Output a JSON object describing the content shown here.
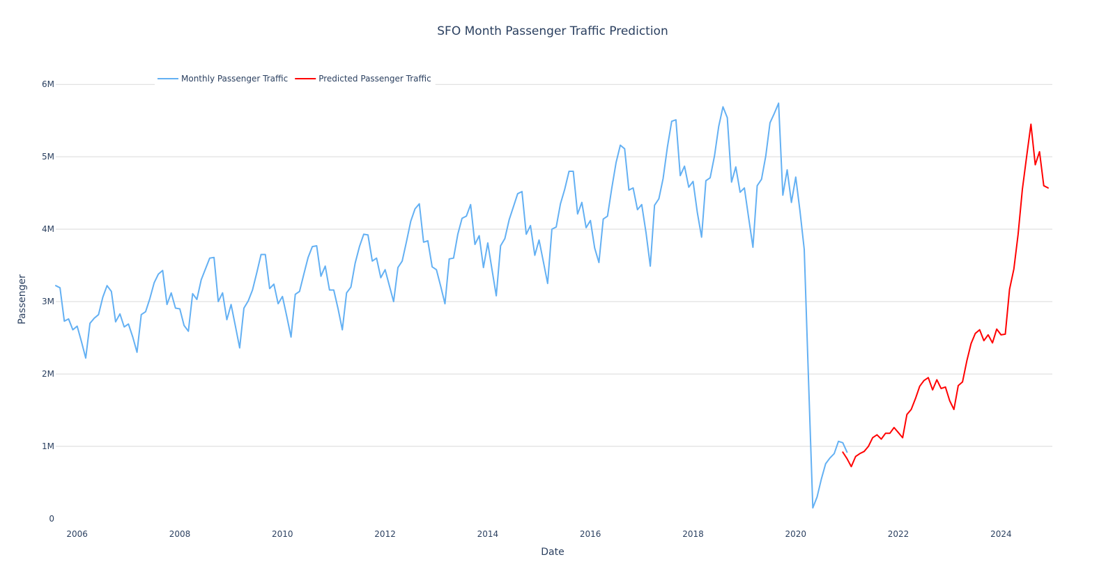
{
  "chart_data": {
    "type": "line",
    "title": "SFO Month Passenger Traffic Prediction",
    "xlabel": "Date",
    "ylabel": "Passenger",
    "xlim": [
      "2005-08",
      "2025-01"
    ],
    "ylim": [
      0,
      6300000
    ],
    "grid": "horizontal",
    "legend_placement": "top-left",
    "x_ticks": [
      "2006",
      "2008",
      "2010",
      "2012",
      "2014",
      "2016",
      "2018",
      "2020",
      "2022",
      "2024"
    ],
    "y_ticks": [
      {
        "value": 0,
        "label": "0"
      },
      {
        "value": 1000000,
        "label": "1M"
      },
      {
        "value": 2000000,
        "label": "2M"
      },
      {
        "value": 3000000,
        "label": "3M"
      },
      {
        "value": 4000000,
        "label": "4M"
      },
      {
        "value": 5000000,
        "label": "5M"
      },
      {
        "value": 6000000,
        "label": "6M"
      }
    ],
    "series": [
      {
        "name": "Monthly Passenger Traffic",
        "color": "#63b0f3",
        "start": "2005-08",
        "values": [
          3220000,
          3190000,
          2730000,
          2760000,
          2610000,
          2660000,
          2450000,
          2220000,
          2700000,
          2770000,
          2820000,
          3060000,
          3220000,
          3140000,
          2720000,
          2830000,
          2650000,
          2690000,
          2510000,
          2300000,
          2820000,
          2860000,
          3040000,
          3260000,
          3380000,
          3430000,
          2960000,
          3120000,
          2910000,
          2900000,
          2670000,
          2590000,
          3110000,
          3030000,
          3300000,
          3450000,
          3600000,
          3610000,
          3000000,
          3120000,
          2750000,
          2960000,
          2660000,
          2360000,
          2910000,
          3010000,
          3160000,
          3400000,
          3650000,
          3650000,
          3180000,
          3240000,
          2970000,
          3070000,
          2800000,
          2510000,
          3100000,
          3140000,
          3380000,
          3610000,
          3760000,
          3770000,
          3350000,
          3490000,
          3160000,
          3160000,
          2900000,
          2610000,
          3120000,
          3200000,
          3530000,
          3760000,
          3930000,
          3920000,
          3560000,
          3600000,
          3330000,
          3440000,
          3220000,
          3000000,
          3470000,
          3560000,
          3830000,
          4110000,
          4280000,
          4350000,
          3820000,
          3840000,
          3480000,
          3440000,
          3210000,
          2970000,
          3590000,
          3600000,
          3930000,
          4150000,
          4180000,
          4340000,
          3790000,
          3910000,
          3470000,
          3810000,
          3440000,
          3080000,
          3770000,
          3870000,
          4130000,
          4310000,
          4490000,
          4520000,
          3930000,
          4050000,
          3640000,
          3850000,
          3550000,
          3250000,
          4000000,
          4030000,
          4350000,
          4550000,
          4800000,
          4800000,
          4210000,
          4370000,
          4020000,
          4120000,
          3740000,
          3540000,
          4140000,
          4180000,
          4570000,
          4920000,
          5160000,
          5110000,
          4540000,
          4570000,
          4270000,
          4340000,
          3950000,
          3490000,
          4330000,
          4420000,
          4700000,
          5130000,
          5490000,
          5510000,
          4740000,
          4870000,
          4580000,
          4660000,
          4230000,
          3890000,
          4670000,
          4710000,
          5010000,
          5420000,
          5690000,
          5540000,
          4650000,
          4860000,
          4510000,
          4570000,
          4160000,
          3750000,
          4600000,
          4690000,
          5010000,
          5470000,
          5600000,
          5740000,
          4470000,
          4820000,
          4370000,
          4720000,
          4250000,
          3720000,
          1900000,
          150000,
          300000,
          550000,
          760000,
          840000,
          900000,
          1070000,
          1050000,
          920000
        ]
      },
      {
        "name": "Predicted Passenger Traffic",
        "color": "#ff0000",
        "start": "2020-12",
        "values": [
          920000,
          830000,
          720000,
          860000,
          900000,
          930000,
          1000000,
          1120000,
          1160000,
          1100000,
          1180000,
          1180000,
          1260000,
          1190000,
          1120000,
          1440000,
          1510000,
          1660000,
          1830000,
          1910000,
          1950000,
          1780000,
          1920000,
          1800000,
          1820000,
          1630000,
          1510000,
          1840000,
          1890000,
          2180000,
          2420000,
          2560000,
          2610000,
          2460000,
          2540000,
          2430000,
          2620000,
          2540000,
          2550000,
          3170000,
          3450000,
          3930000,
          4550000,
          5010000,
          5450000,
          4890000,
          5070000,
          4600000,
          4570000
        ]
      }
    ]
  }
}
